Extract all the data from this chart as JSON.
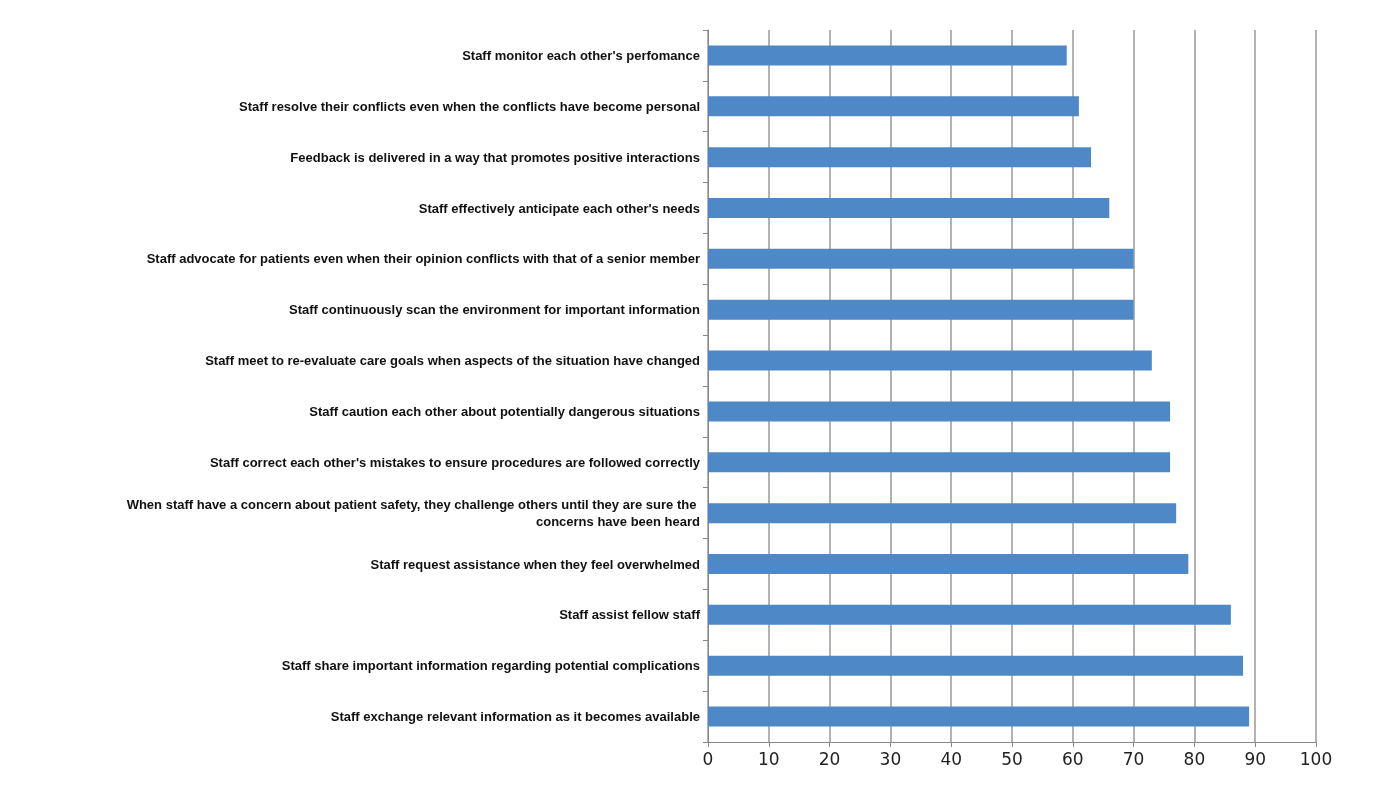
{
  "chart_data": {
    "type": "bar",
    "orientation": "horizontal",
    "categories": [
      "Staff monitor each other's perfomance",
      "Staff resolve their conflicts even when the conflicts have become personal",
      "Feedback is delivered in a way that promotes positive interactions",
      "Staff effectively anticipate each other's needs",
      "Staff advocate for patients even when their opinion conflicts with that of a senior member",
      "Staff continuously scan the environment for important information",
      "Staff meet to re-evaluate care goals when aspects of the situation have changed",
      "Staff caution each other about potentially dangerous situations",
      "Staff correct each other's mistakes to ensure procedures are followed correctly",
      "When staff have a concern about patient safety, they challenge others until they are sure the concerns have been heard",
      "Staff request assistance when they feel overwhelmed",
      "Staff assist fellow staff",
      "Staff share important information regarding potential complications",
      "Staff exchange relevant information as it becomes available"
    ],
    "values": [
      59,
      61,
      63,
      66,
      70,
      70,
      73,
      76,
      76,
      77,
      79,
      86,
      88,
      89
    ],
    "color": "#4f88c6",
    "xlim": [
      0,
      100
    ],
    "xticks": [
      0,
      10,
      20,
      30,
      40,
      50,
      60,
      70,
      80,
      90,
      100
    ],
    "grid": "x"
  }
}
